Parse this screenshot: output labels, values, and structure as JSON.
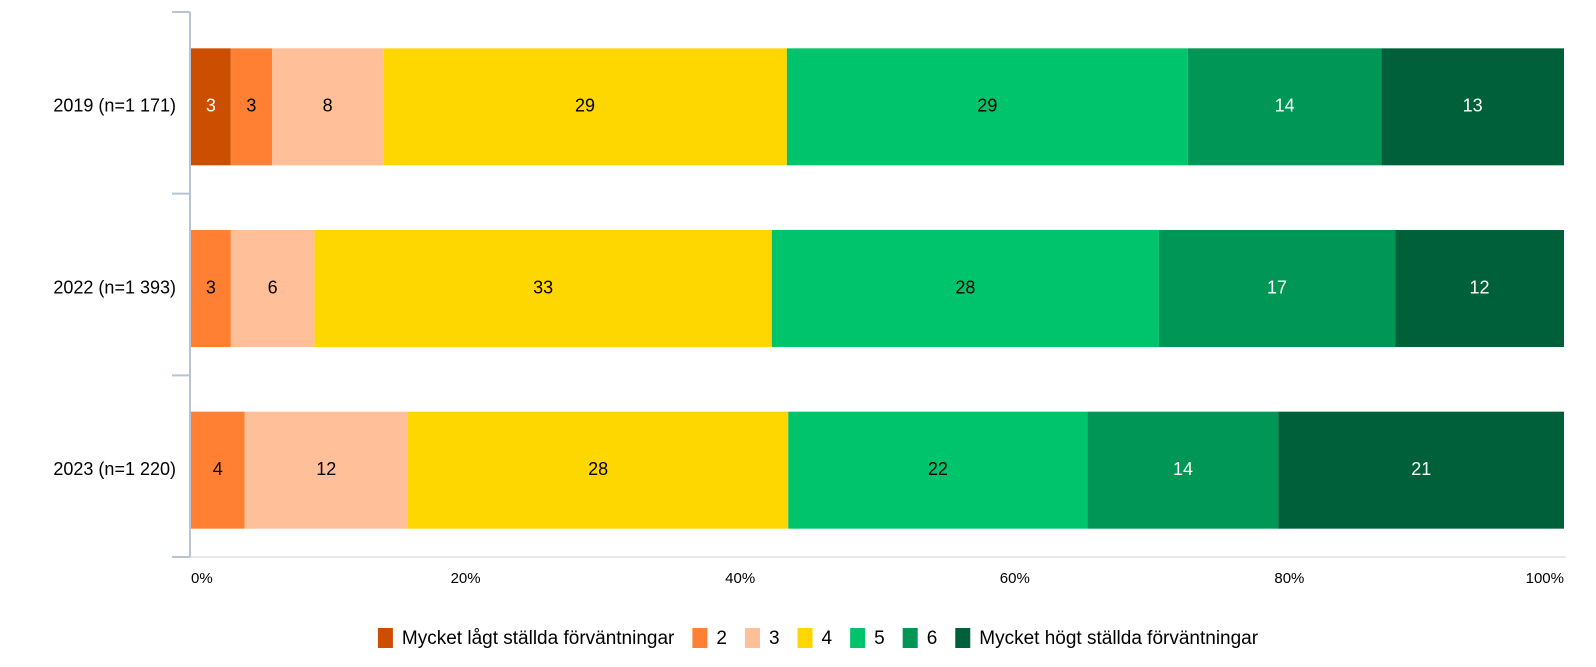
{
  "chart_data": {
    "type": "stacked-barh",
    "categories": [
      "2019 (n=1 171)",
      "2022 (n=1 393)",
      "2023 (n=1 220)"
    ],
    "series": [
      {
        "name": "Mycket lågt ställda förväntningar",
        "color": "#cc4e00",
        "values": [
          2.9,
          null,
          null
        ],
        "value_labels": [
          "3",
          null,
          null
        ]
      },
      {
        "name": "2",
        "color": "#ff8033",
        "values": [
          3.0,
          2.9,
          3.9
        ],
        "value_labels": [
          "3",
          "3",
          "4"
        ]
      },
      {
        "name": "3",
        "color": "#ffbf99",
        "values": [
          8.1,
          6.1,
          11.9
        ],
        "value_labels": [
          "8",
          "6",
          "12"
        ]
      },
      {
        "name": "4",
        "color": "#ffd700",
        "values": [
          29.4,
          33.3,
          27.7
        ],
        "value_labels": [
          "29",
          "33",
          "28"
        ]
      },
      {
        "name": "5",
        "color": "#00c46b",
        "values": [
          29.2,
          28.2,
          21.8
        ],
        "value_labels": [
          "29",
          "28",
          "22"
        ]
      },
      {
        "name": "6",
        "color": "#009655",
        "values": [
          14.1,
          17.2,
          13.9
        ],
        "value_labels": [
          "14",
          "17",
          "14"
        ]
      },
      {
        "name": "Mycket högt ställda förväntningar",
        "color": "#00603a",
        "values": [
          13.3,
          12.3,
          20.8
        ],
        "value_labels": [
          "13",
          "12",
          "21"
        ]
      }
    ],
    "xlim": [
      0,
      100
    ],
    "xticks": [
      {
        "value": 0,
        "label": "0%"
      },
      {
        "value": 20,
        "label": "20%"
      },
      {
        "value": 40,
        "label": "40%"
      },
      {
        "value": 60,
        "label": "60%"
      },
      {
        "value": 80,
        "label": "80%"
      },
      {
        "value": 100,
        "label": "100%"
      }
    ],
    "legend": "bottom"
  }
}
